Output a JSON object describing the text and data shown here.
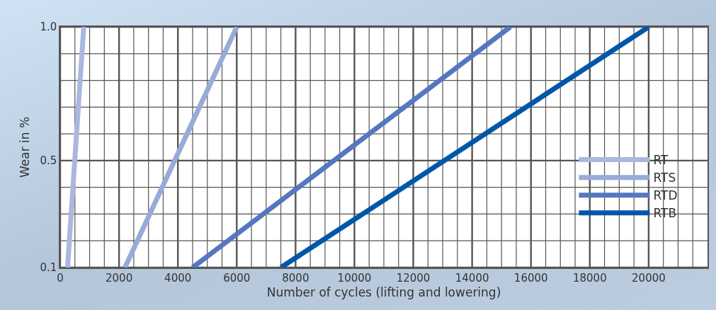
{
  "chart_data": {
    "type": "line",
    "xlabel": "Number of cycles (lifting and lowering)",
    "ylabel": "Wear in %",
    "series": [
      {
        "name": "RT",
        "color": "#aab8e0",
        "x": [
          250,
          800
        ],
        "values": [
          0.1,
          1.0
        ]
      },
      {
        "name": "RTS",
        "color": "#98aad8",
        "x": [
          2200,
          6000
        ],
        "values": [
          0.1,
          1.0
        ]
      },
      {
        "name": "RTD",
        "color": "#5577c0",
        "x": [
          4500,
          15300
        ],
        "values": [
          0.1,
          1.0
        ]
      },
      {
        "name": "RTB",
        "color": "#0057a8",
        "x": [
          7500,
          20000
        ],
        "values": [
          0.1,
          1.0
        ]
      }
    ],
    "xlim": [
      0,
      22000
    ],
    "xticks": [
      0,
      {
        "value": 500,
        "label": null
      },
      {
        "value": 1000,
        "label": null
      },
      {
        "value": 1500,
        "label": null
      },
      2000,
      {
        "value": 2500,
        "label": null
      },
      {
        "value": 3000,
        "label": null
      },
      {
        "value": 3500,
        "label": null
      },
      4000,
      {
        "value": 4500,
        "label": null
      },
      {
        "value": 5000,
        "label": null
      },
      {
        "value": 5500,
        "label": null
      },
      6000,
      {
        "value": 6500,
        "label": null
      },
      {
        "value": 7000,
        "label": null
      },
      {
        "value": 7500,
        "label": null
      },
      8000,
      {
        "value": 8500,
        "label": null
      },
      {
        "value": 9000,
        "label": null
      },
      {
        "value": 9500,
        "label": null
      },
      10000,
      {
        "value": 10500,
        "label": null
      },
      {
        "value": 11000,
        "label": null
      },
      {
        "value": 11500,
        "label": null
      },
      12000,
      {
        "value": 12500,
        "label": null
      },
      {
        "value": 13000,
        "label": null
      },
      {
        "value": 13500,
        "label": null
      },
      14000,
      {
        "value": 14500,
        "label": null
      },
      {
        "value": 15000,
        "label": null
      },
      {
        "value": 15500,
        "label": null
      },
      16000,
      {
        "value": 16500,
        "label": null
      },
      {
        "value": 17000,
        "label": null
      },
      {
        "value": 17500,
        "label": null
      },
      18000,
      {
        "value": 18500,
        "label": null
      },
      {
        "value": 19000,
        "label": null
      },
      {
        "value": 19500,
        "label": null
      },
      20000,
      {
        "value": 20500,
        "label": null
      },
      {
        "value": 21000,
        "label": null
      },
      {
        "value": 21500,
        "label": null
      }
    ],
    "ylim": [
      0.1,
      1.0
    ],
    "yticks": [
      {
        "value": 0.1,
        "label": "0.1"
      },
      {
        "value": 0.2,
        "label": null
      },
      {
        "value": 0.3,
        "label": null
      },
      {
        "value": 0.4,
        "label": null
      },
      {
        "value": 0.5,
        "label": "0.5"
      },
      {
        "value": 0.6,
        "label": null
      },
      {
        "value": 0.7,
        "label": null
      },
      {
        "value": 0.8,
        "label": null
      },
      {
        "value": 0.9,
        "label": null
      },
      {
        "value": 1.0,
        "label": "1.0"
      }
    ],
    "grid": true,
    "legend": "right",
    "marker": "none",
    "line_style": "solid"
  }
}
